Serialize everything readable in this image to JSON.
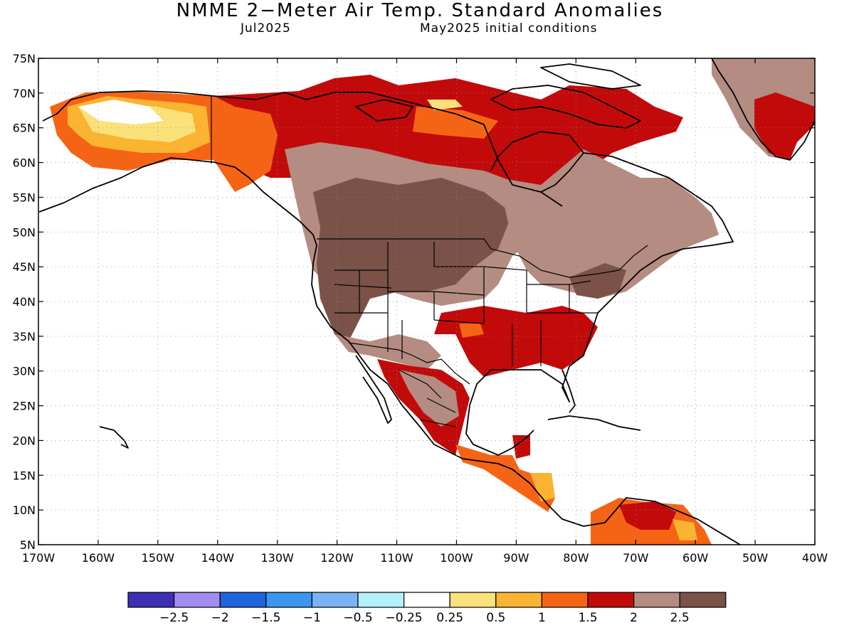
{
  "title": "NMME 2−Meter Air Temp. Standard Anomalies",
  "target_month": "Jul2025",
  "initial_conditions": "May2025 initial conditions",
  "map": {
    "lon_range": [
      -170,
      -40
    ],
    "lat_range": [
      5,
      75
    ],
    "lat_labels": [
      "5N",
      "10N",
      "15N",
      "20N",
      "25N",
      "30N",
      "35N",
      "40N",
      "45N",
      "50N",
      "55N",
      "60N",
      "65N",
      "70N",
      "75N"
    ],
    "lon_labels": [
      "170W",
      "160W",
      "150W",
      "140W",
      "130W",
      "120W",
      "110W",
      "100W",
      "90W",
      "80W",
      "70W",
      "60W",
      "50W",
      "40W"
    ],
    "grid": "dotted every 5° latitude and 10° longitude"
  },
  "colorbar": {
    "colors": [
      "#3c2fb4",
      "#a38cf0",
      "#1e64dc",
      "#3c96f0",
      "#78b4f5",
      "#b4f0fa",
      "#ffffff",
      "#fae17a",
      "#fab432",
      "#f56414",
      "#c30a0a",
      "#b48c82",
      "#7a5248"
    ],
    "labels": [
      "−2.5",
      "−2",
      "−1.5",
      "−1",
      "−0.5",
      "−0.25",
      "0.25",
      "0.5",
      "1",
      "1.5",
      "2",
      "2.5"
    ]
  },
  "anomaly_regions": [
    {
      "region": "Alaska interior",
      "category": "0.25-1",
      "color": "#fae17a"
    },
    {
      "region": "Alaska south coast / Yukon",
      "category": "1-2",
      "color": "#f56414"
    },
    {
      "region": "Northern Canada / Arctic",
      "category": "1.5-2",
      "color": "#c30a0a"
    },
    {
      "region": "Western & Central US / Prairies",
      "category": ">2.5",
      "color": "#7a5248"
    },
    {
      "region": "Eastern Canada / Great Lakes",
      "category": "2-2.5",
      "color": "#b48c82"
    },
    {
      "region": "Southern US / Mississippi valley",
      "category": "1.5-2",
      "color": "#c30a0a"
    },
    {
      "region": "Mexico",
      "category": "2-2.5",
      "color": "#b48c82"
    },
    {
      "region": "Central America",
      "category": "0.5-1.5",
      "color": "#fab432"
    },
    {
      "region": "Greenland",
      "category": "2-2.5",
      "color": "#b48c82"
    },
    {
      "region": "Northern South America",
      "category": "1-2",
      "color": "#f56414"
    }
  ]
}
